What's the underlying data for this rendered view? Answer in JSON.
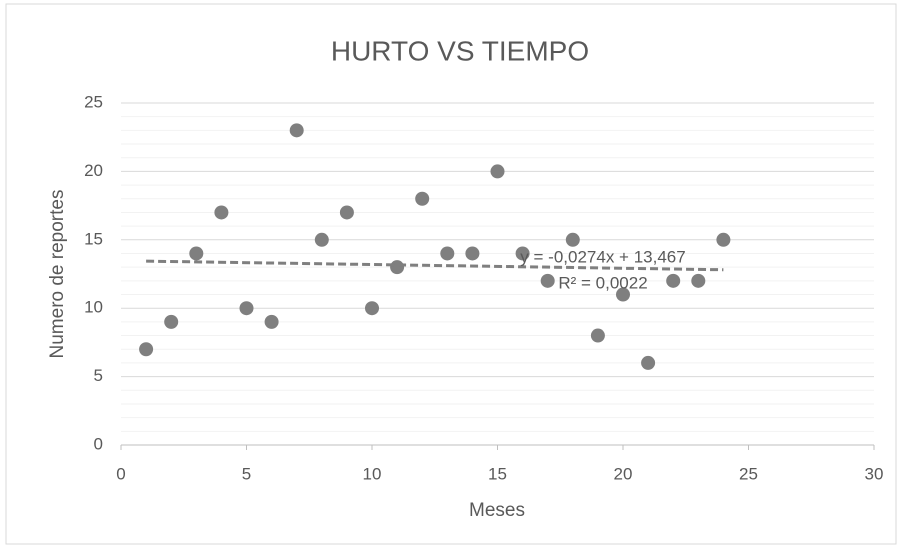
{
  "chart_data": {
    "type": "scatter",
    "title": "HURTO VS TIEMPO",
    "x_label": "Meses",
    "y_label": "Numero de reportes",
    "series": [
      {
        "name": "Hurto",
        "color": "#7f7f7f",
        "x": [
          1,
          2,
          3,
          4,
          5,
          6,
          7,
          8,
          9,
          10,
          11,
          12,
          13,
          14,
          15,
          16,
          17,
          18,
          19,
          20,
          21,
          22,
          23,
          24
        ],
        "values": [
          7,
          9,
          14,
          17,
          10,
          9,
          23,
          15,
          17,
          10,
          13,
          18,
          14,
          14,
          20,
          14,
          12,
          15,
          8,
          11,
          6,
          12,
          12,
          15
        ]
      }
    ],
    "trendline": {
      "slope": -0.0274,
      "intercept": 13.467,
      "color": "#7f7f7f",
      "equation": "y = -0,0274x + 13,467",
      "r2": "R² = 0,0022"
    },
    "xlim": [
      0,
      30
    ],
    "xticks": [
      0,
      5,
      10,
      15,
      20,
      25,
      30
    ],
    "ylim": [
      0,
      25
    ],
    "yticks": [
      0,
      5,
      10,
      15,
      20,
      25
    ],
    "y_minor_ticks": [
      1,
      2,
      3,
      4,
      6,
      7,
      8,
      9,
      11,
      12,
      13,
      14,
      16,
      17,
      18,
      19,
      21,
      22,
      23,
      24
    ],
    "grid": true
  }
}
